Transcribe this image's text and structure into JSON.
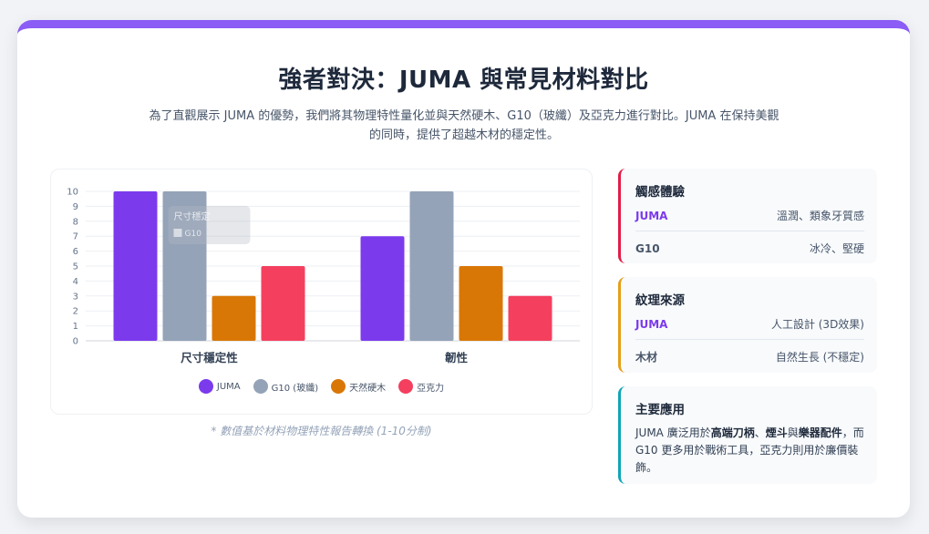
{
  "header": {
    "title": "強者對決：JUMA 與常見材料對比",
    "subtitle": "為了直觀展示 JUMA 的優勢，我們將其物理特性量化並與天然硬木、G10（玻纖）及亞克力進行對比。JUMA 在保持美觀的同時，提供了超越木材的穩定性。"
  },
  "chart_data": {
    "type": "bar",
    "categories": [
      "尺寸穩定性",
      "韌性"
    ],
    "series": [
      {
        "name": "JUMA",
        "values": [
          10,
          7
        ],
        "color": "#7c3aed"
      },
      {
        "name": "G10 (玻纖)",
        "values": [
          10,
          10
        ],
        "color": "#94a3b8"
      },
      {
        "name": "天然硬木",
        "values": [
          3,
          5
        ],
        "color": "#d97706"
      },
      {
        "name": "亞克力",
        "values": [
          5,
          3
        ],
        "color": "#f43f5e"
      }
    ],
    "ylim": [
      0,
      10
    ],
    "yticks": [
      0,
      1,
      2,
      3,
      4,
      5,
      6,
      7,
      8,
      9,
      10
    ],
    "grid": true,
    "legend_position": "bottom",
    "tooltip": {
      "title": "尺寸穩定",
      "item": "G10"
    }
  },
  "chart_note": "* 數值基於材料物理特性報告轉換 (1-10分制)",
  "panels": [
    {
      "title": "觸感體驗",
      "rows": [
        {
          "key": "JUMA",
          "value": "溫潤、類象牙質感"
        },
        {
          "key": "G10",
          "value": "冰冷、堅硬"
        }
      ]
    },
    {
      "title": "紋理來源",
      "rows": [
        {
          "key": "JUMA",
          "value": "人工設計 (3D效果)"
        },
        {
          "key": "木材",
          "value": "自然生長 (不穩定)"
        }
      ]
    },
    {
      "title": "主要應用",
      "desc": {
        "p1": "JUMA 廣泛用於",
        "b1": "高端刀柄",
        "s1": "、",
        "b2": "煙斗",
        "s2": "與",
        "b3": "樂器配件",
        "p2": "，而 G10 更多用於戰術工具，亞克力則用於廉價裝飾。"
      }
    }
  ]
}
